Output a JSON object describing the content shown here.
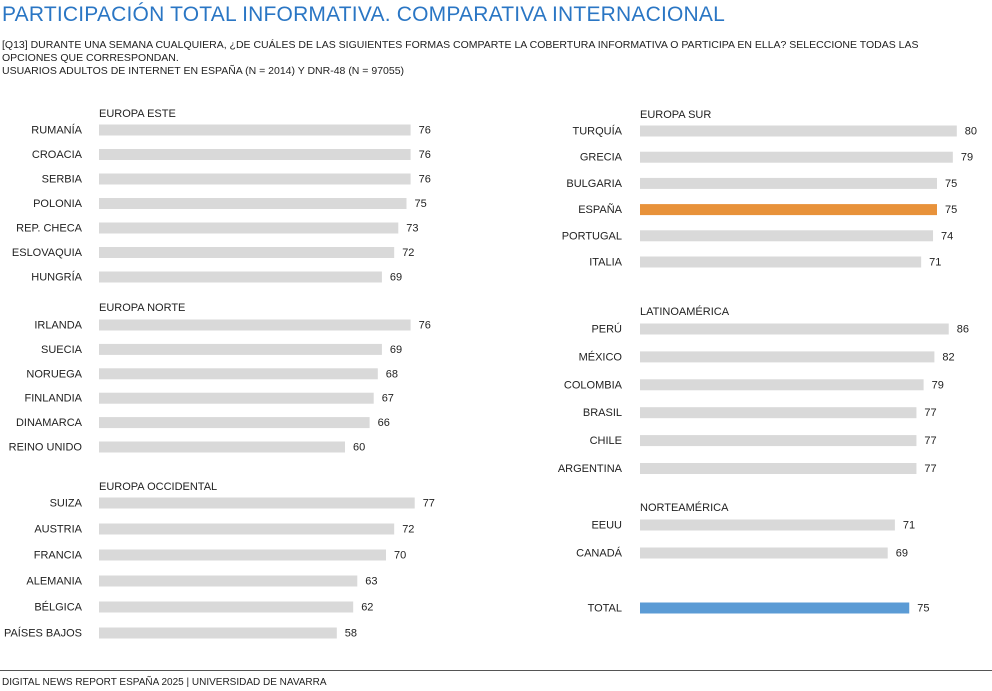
{
  "title": "PARTICIPACIÓN TOTAL INFORMATIVA. COMPARATIVA INTERNACIONAL",
  "subtitle_lines": [
    "[Q13] DURANTE UNA SEMANA CUALQUIERA, ¿DE CUÁLES DE LAS SIGUIENTES FORMAS COMPARTE LA COBERTURA INFORMATIVA O PARTICIPA EN ELLA? SELECCIONE TODAS LAS",
    "OPCIONES QUE CORRESPONDAN.",
    "USUARIOS ADULTOS DE INTERNET EN ESPAÑA (N = 2014) Y DNR-48 (N = 97055)"
  ],
  "footer": "DIGITAL NEWS REPORT ESPAÑA 2025 | UNIVERSIDAD DE NAVARRA",
  "colors": {
    "bar": "#d9d9d9",
    "spain": "#e8923a",
    "total": "#5b9bd5",
    "title": "#2a76c4"
  },
  "chart_data": {
    "type": "bar",
    "orientation": "horizontal",
    "value_range": [
      0,
      100
    ],
    "groups": [
      {
        "name": "EUROPA ESTE",
        "categories": [
          "RUMANÍA",
          "CROACIA",
          "SERBIA",
          "POLONIA",
          "REP. CHECA",
          "ESLOVAQUIA",
          "HUNGRÍA"
        ],
        "values": [
          76,
          76,
          76,
          75,
          73,
          72,
          69
        ]
      },
      {
        "name": "EUROPA NORTE",
        "categories": [
          "IRLANDA",
          "SUECIA",
          "NORUEGA",
          "FINLANDIA",
          "DINAMARCA",
          "REINO UNIDO"
        ],
        "values": [
          76,
          69,
          68,
          67,
          66,
          60
        ]
      },
      {
        "name": "EUROPA OCCIDENTAL",
        "categories": [
          "SUIZA",
          "AUSTRIA",
          "FRANCIA",
          "ALEMANIA",
          "BÉLGICA",
          "PAÍSES BAJOS"
        ],
        "values": [
          77,
          72,
          70,
          63,
          62,
          58
        ]
      },
      {
        "name": "EUROPA SUR",
        "categories": [
          "TURQUÍA",
          "GRECIA",
          "BULGARIA",
          "ESPAÑA",
          "PORTUGAL",
          "ITALIA"
        ],
        "values": [
          80,
          79,
          75,
          75,
          74,
          71
        ],
        "highlight": "ESPAÑA"
      },
      {
        "name": "LATINOAMÉRICA",
        "categories": [
          "PERÚ",
          "MÉXICO",
          "COLOMBIA",
          "BRASIL",
          "CHILE",
          "ARGENTINA"
        ],
        "values": [
          86,
          82,
          79,
          77,
          77,
          77
        ]
      },
      {
        "name": "NORTEAMÉRICA",
        "categories": [
          "EEUU",
          "CANADÁ"
        ],
        "values": [
          71,
          69
        ]
      },
      {
        "name": "",
        "categories": [
          "TOTAL"
        ],
        "values": [
          75
        ],
        "highlight": "TOTAL"
      }
    ]
  }
}
